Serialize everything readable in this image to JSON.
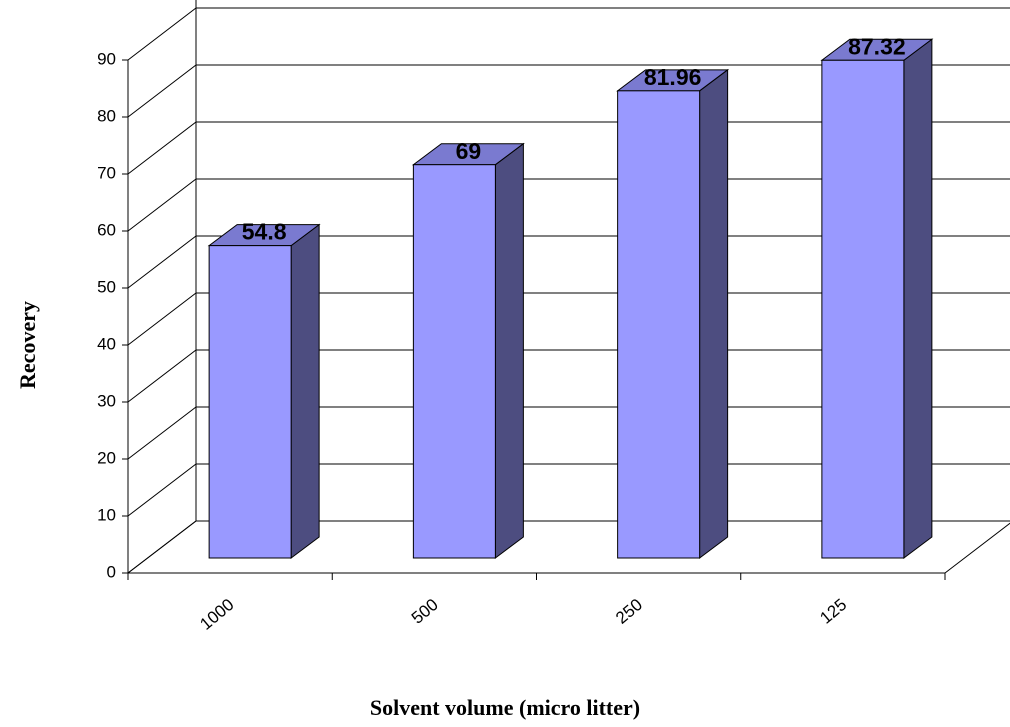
{
  "chart_data": {
    "type": "bar3d",
    "x_label": "Solvent volume (micro litter)",
    "y_label": "Recovery",
    "categories": [
      "1000",
      "500",
      "250",
      "125"
    ],
    "values": [
      54.8,
      69,
      81.96,
      87.32
    ],
    "color": "#9999ff",
    "ylim": [
      0,
      100
    ],
    "yticks": [
      0,
      10,
      20,
      30,
      40,
      50,
      60,
      70,
      80,
      90
    ],
    "grid": true
  }
}
